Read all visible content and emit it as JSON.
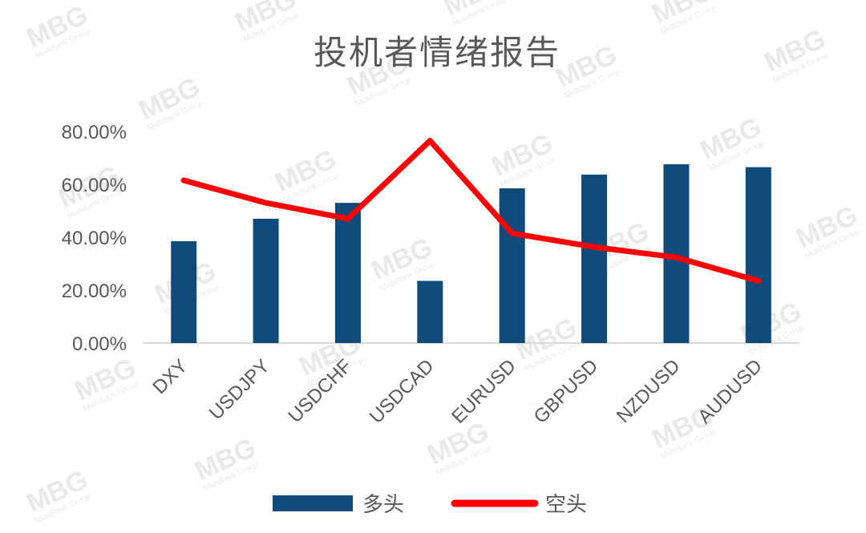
{
  "chart_data": {
    "type": "bar",
    "title": "投机者情绪报告",
    "categories": [
      "DXY",
      "USDJPY",
      "USDCHF",
      "USDCAD",
      "EURUSD",
      "GBPUSD",
      "NZDUSD",
      "AUDUSD"
    ],
    "series": [
      {
        "name": "多头",
        "type": "bar",
        "color": "#0f4a7a",
        "values": [
          38.5,
          47.0,
          53.0,
          23.5,
          58.5,
          63.7,
          67.6,
          66.5
        ]
      },
      {
        "name": "空头",
        "type": "line",
        "color": "#ff0000",
        "values": [
          61.5,
          53.0,
          47.0,
          76.5,
          41.5,
          36.3,
          32.4,
          23.5
        ]
      }
    ],
    "y_ticks": [
      "0.00%",
      "20.00%",
      "40.00%",
      "60.00%",
      "80.00%"
    ],
    "ylim": [
      0,
      80
    ],
    "grid": false,
    "legend_position": "bottom"
  },
  "watermark": {
    "text": "MBG",
    "subtext": "MultiBank Group"
  }
}
